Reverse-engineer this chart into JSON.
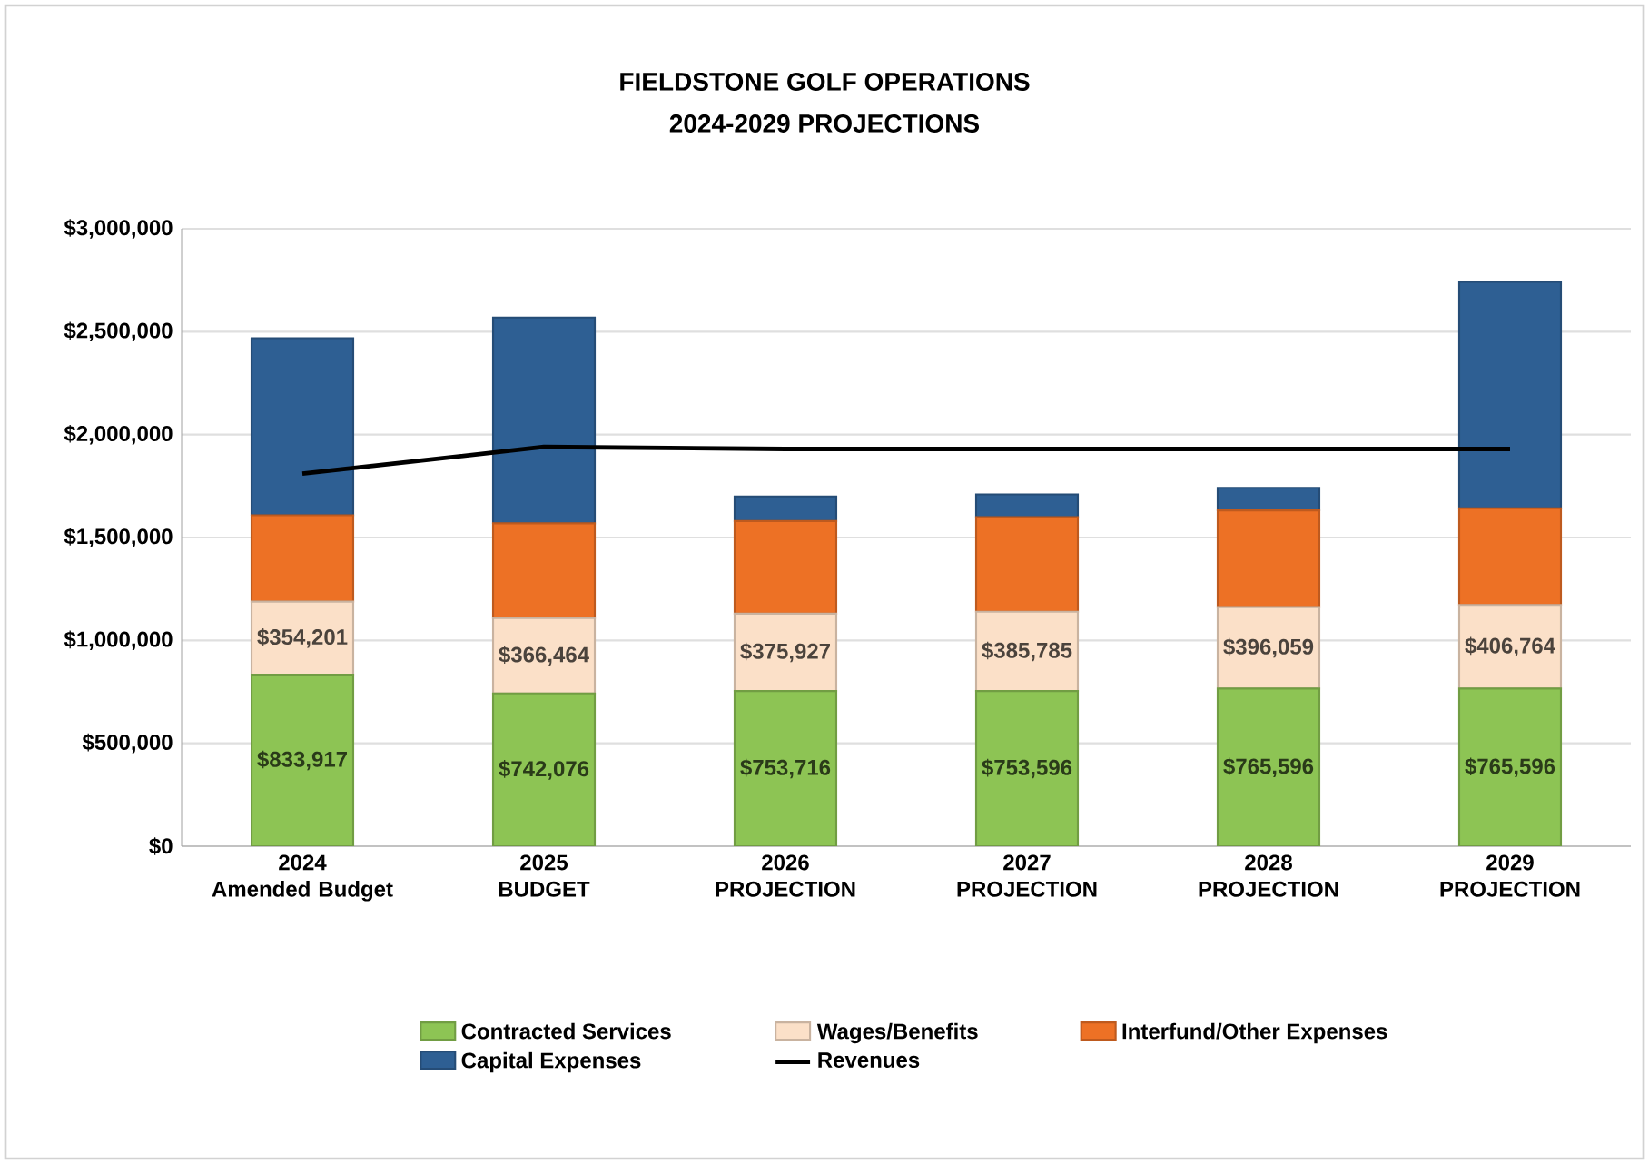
{
  "chart_data": {
    "type": "bar",
    "title": "FIELDSTONE GOLF OPERATIONS",
    "subtitle": "2024-2029 PROJECTIONS",
    "categories": [
      "2024 Amended Budget",
      "2025 BUDGET",
      "2026 PROJECTION",
      "2027 PROJECTION",
      "2028 PROJECTION",
      "2029 PROJECTION"
    ],
    "stacked": true,
    "series": [
      {
        "name": "Contracted Services",
        "type": "bar",
        "color": "#8dc454",
        "values": [
          833917,
          742076,
          753716,
          753596,
          765596,
          765596
        ],
        "value_labels": [
          "$833,917",
          "$742,076",
          "$753,716",
          "$753,596",
          "$765,596",
          "$765,596"
        ]
      },
      {
        "name": "Wages/Benefits",
        "type": "bar",
        "color": "#fbe0c8",
        "values": [
          354201,
          366464,
          375927,
          385785,
          396059,
          406764
        ],
        "value_labels": [
          "$354,201",
          "$366,464",
          "$375,927",
          "$385,785",
          "$396,059",
          "$406,764"
        ]
      },
      {
        "name": "Interfund/Other Expenses",
        "type": "bar",
        "color": "#ed7125",
        "values": [
          420000,
          460000,
          450000,
          460000,
          470000,
          470000
        ]
      },
      {
        "name": "Capital Expenses",
        "type": "bar",
        "color": "#2e5f93",
        "values": [
          860000,
          1000000,
          120000,
          110000,
          110000,
          1100000
        ]
      },
      {
        "name": "Revenues",
        "type": "line",
        "color": "#000000",
        "values": [
          1810000,
          1940000,
          1930000,
          1930000,
          1930000,
          1930000
        ]
      }
    ],
    "ylim": [
      0,
      3000000
    ],
    "yticks": [
      {
        "value": 0,
        "label": "$0"
      },
      {
        "value": 500000,
        "label": "$500,000"
      },
      {
        "value": 1000000,
        "label": "$1,000,000"
      },
      {
        "value": 1500000,
        "label": "$1,500,000"
      },
      {
        "value": 2000000,
        "label": "$2,000,000"
      },
      {
        "value": 2500000,
        "label": "$2,500,000"
      },
      {
        "value": 3000000,
        "label": "$3,000,000"
      }
    ],
    "grid": "y",
    "legend": "bottom"
  }
}
